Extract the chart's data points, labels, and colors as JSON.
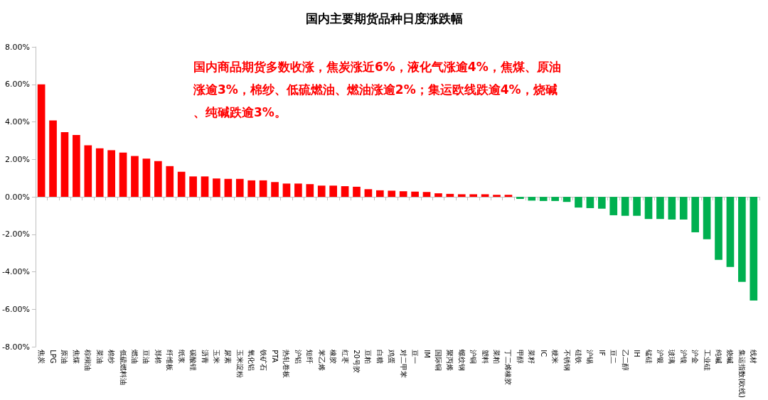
{
  "chart_data": {
    "type": "bar",
    "title": "国内主要期货品种日度涨跌幅",
    "annotations": [
      "国内商品期货多数收涨，焦炭涨近6%，液化气涨逾4%，焦煤、原油涨逾3%，棉纱、低硫燃油、燃油涨逾2%；集运欧线跌逾4%，烧碱、纯碱跌逾3%。"
    ],
    "categories": [
      "焦炭",
      "LPG",
      "原油",
      "焦煤",
      "棕榈油",
      "菜油",
      "棉纱",
      "低硫燃料油",
      "燃油",
      "豆油",
      "郑棉",
      "纤维板",
      "纸浆",
      "碳酸锂",
      "沥青",
      "玉米",
      "尿素",
      "玉米淀粉",
      "氧化铝",
      "铁矿石",
      "PTA",
      "热轧卷板",
      "沪铝",
      "短纤",
      "苯乙烯",
      "橡胶",
      "红枣",
      "20号胶",
      "豆粕",
      "白糖",
      "鸡蛋",
      "对二甲苯",
      "豆一",
      "IM",
      "国际铜",
      "聚丙烯",
      "螺纹钢",
      "沪铜",
      "塑料",
      "菜粕",
      "丁二烯橡胶",
      "甲醇",
      "菜籽",
      "IC",
      "粳米",
      "不锈钢",
      "硅铁",
      "沪锡",
      "IF",
      "豆二",
      "乙二醇",
      "IH",
      "锰硅",
      "沪银",
      "玻璃",
      "沪镍",
      "沪金",
      "工业硅",
      "纯碱",
      "烧碱",
      "集运指数(欧线)",
      "线材"
    ],
    "values": [
      6.0,
      4.08,
      3.45,
      3.3,
      2.75,
      2.59,
      2.49,
      2.36,
      2.18,
      2.04,
      1.91,
      1.64,
      1.34,
      1.09,
      1.09,
      0.98,
      0.96,
      0.96,
      0.88,
      0.88,
      0.79,
      0.71,
      0.71,
      0.68,
      0.6,
      0.6,
      0.57,
      0.54,
      0.41,
      0.35,
      0.33,
      0.3,
      0.28,
      0.26,
      0.19,
      0.16,
      0.14,
      0.14,
      0.14,
      0.11,
      0.11,
      -0.11,
      -0.2,
      -0.22,
      -0.22,
      -0.27,
      -0.57,
      -0.6,
      -0.63,
      -0.98,
      -1.01,
      -1.01,
      -1.18,
      -1.18,
      -1.21,
      -1.21,
      -1.89,
      -2.26,
      -3.36,
      -3.74,
      -4.53,
      -5.53
    ],
    "colors": [
      "#ff0000",
      "#ff0000",
      "#ff0000",
      "#ff0000",
      "#ff0000",
      "#ff0000",
      "#ff0000",
      "#ff0000",
      "#ff0000",
      "#ff0000",
      "#ff0000",
      "#ff0000",
      "#ff0000",
      "#ff0000",
      "#ff0000",
      "#ff0000",
      "#ff0000",
      "#ff0000",
      "#ff0000",
      "#ff0000",
      "#ff0000",
      "#ff0000",
      "#ff0000",
      "#ff0000",
      "#ff0000",
      "#ff0000",
      "#ff0000",
      "#ff0000",
      "#ff0000",
      "#ff0000",
      "#ff0000",
      "#ff0000",
      "#ff0000",
      "#ff0000",
      "#ff0000",
      "#ff0000",
      "#ff0000",
      "#ff0000",
      "#ff0000",
      "#ff0000",
      "#ff0000",
      "#00b050",
      "#00b050",
      "#00b050",
      "#00b050",
      "#00b050",
      "#00b050",
      "#00b050",
      "#00b050",
      "#00b050",
      "#00b050",
      "#00b050",
      "#00b050",
      "#00b050",
      "#00b050",
      "#00b050",
      "#00b050",
      "#00b050",
      "#00b050",
      "#00b050",
      "#00b050",
      "#00b050"
    ],
    "ylim": [
      -8,
      8
    ],
    "yticks": [
      {
        "value": -8,
        "label": "-8.00%"
      },
      {
        "value": -6,
        "label": "-6.00%"
      },
      {
        "value": -4,
        "label": "-4.00%"
      },
      {
        "value": -2,
        "label": "-2.00%"
      },
      {
        "value": 0,
        "label": "0.00%"
      },
      {
        "value": 2,
        "label": "2.00%"
      },
      {
        "value": 4,
        "label": "4.00%"
      },
      {
        "value": 6,
        "label": "6.00%"
      },
      {
        "value": 8,
        "label": "8.00%"
      }
    ]
  }
}
